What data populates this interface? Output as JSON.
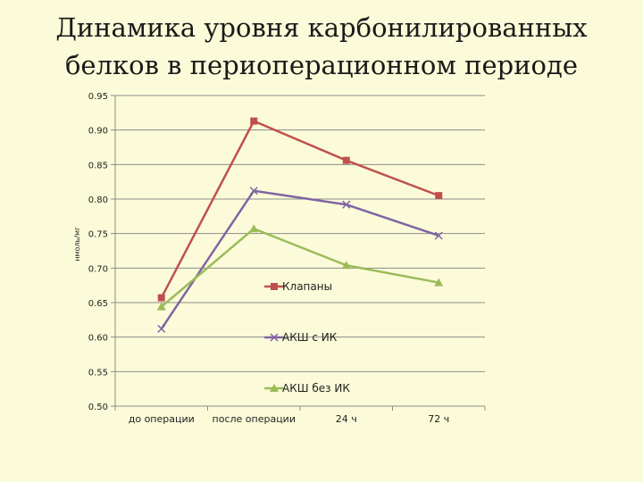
{
  "slide": {
    "title_line1": "Динамика уровня карбонилированных",
    "title_line2": "белков в периоперационном периоде"
  },
  "chart_data": {
    "type": "line",
    "title": "",
    "xlabel": "",
    "ylabel": "нмоль/мг",
    "categories": [
      "до операции",
      "после операции",
      "24 ч",
      "72 ч"
    ],
    "ylim": [
      0.5,
      0.95
    ],
    "ytick_step": 0.05,
    "ytick_labels": [
      "0.50",
      "0.55",
      "0.60",
      "0.65",
      "0.70",
      "0.75",
      "0.80",
      "0.85",
      "0.90",
      "0.95"
    ],
    "grid": true,
    "legend_position": "center",
    "series": [
      {
        "name": "Клапаны",
        "values": [
          0.657,
          0.913,
          0.856,
          0.805
        ],
        "color": "#c0504d",
        "marker": "square"
      },
      {
        "name": "АКШ с ИК",
        "values": [
          0.612,
          0.812,
          0.792,
          0.747
        ],
        "color": "#8064a2",
        "marker": "x"
      },
      {
        "name": "АКШ без ИК",
        "values": [
          0.644,
          0.757,
          0.704,
          0.679
        ],
        "color": "#9bbb59",
        "marker": "triangle"
      }
    ]
  }
}
